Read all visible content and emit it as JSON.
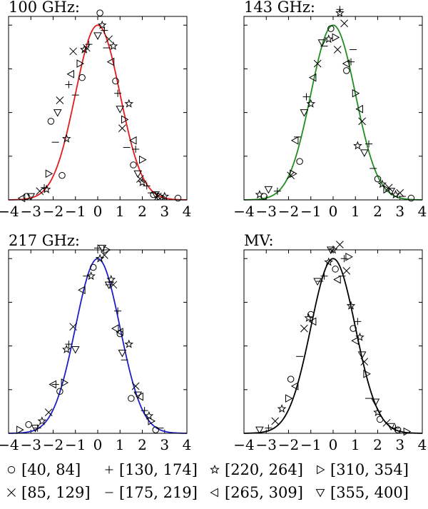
{
  "chart_data": [
    {
      "type": "scatter",
      "title": "100 GHz:",
      "curve_color": "#e41a1c",
      "xlim": [
        -4,
        4
      ],
      "ylim": [
        0,
        1.05
      ],
      "xticks": [
        -4,
        -3,
        -2,
        -1,
        0,
        1,
        2,
        3,
        4
      ],
      "xlabel": "",
      "ylabel": "",
      "series": [
        {
          "name": "[40, 84]",
          "marker": "circle",
          "x": [
            -3.2,
            -2.1,
            -1.6,
            -0.7,
            0.1,
            0.8,
            1.6,
            2.5,
            3.6
          ],
          "y": [
            0.02,
            0.45,
            0.14,
            0.7,
            1.07,
            0.68,
            0.2,
            0.03,
            0.01
          ]
        },
        {
          "name": "[85, 129]",
          "marker": "x",
          "x": [
            -2.6,
            -1.7,
            -1.1,
            -0.5,
            0.5,
            1.1,
            1.9,
            2.7
          ],
          "y": [
            0.05,
            0.57,
            0.85,
            0.87,
            0.92,
            0.41,
            0.12,
            0.02
          ]
        },
        {
          "name": "[130, 174]",
          "marker": "plus",
          "x": [
            -2.4,
            -1.3,
            -0.4,
            0.3,
            0.9,
            1.7,
            2.2
          ],
          "y": [
            0.07,
            0.66,
            0.89,
            0.97,
            0.61,
            0.29,
            0.08
          ]
        },
        {
          "name": "[175, 219]",
          "marker": "minus",
          "x": [
            -1.9,
            -1.0,
            0.4,
            1.3,
            2.4
          ],
          "y": [
            0.33,
            0.6,
            0.87,
            0.3,
            0.04
          ]
        },
        {
          "name": "[220, 264]",
          "marker": "star",
          "x": [
            -2.3,
            -1.4,
            -0.6,
            0.2,
            0.7,
            1.4,
            2.0,
            3.0
          ],
          "y": [
            0.06,
            0.35,
            0.86,
            1.0,
            0.88,
            0.55,
            0.1,
            0.02
          ]
        },
        {
          "name": "[265, 309]",
          "marker": "tri-left",
          "x": [
            -3.4,
            -1.2,
            0.6,
            1.6
          ],
          "y": [
            0.01,
            0.72,
            0.79,
            0.34
          ]
        },
        {
          "name": "[310, 354]",
          "marker": "tri-right",
          "x": [
            -2.2,
            -0.8,
            1.2,
            2.0,
            2.8
          ],
          "y": [
            0.15,
            0.78,
            0.46,
            0.23,
            0.02
          ]
        },
        {
          "name": "[355, 400]",
          "marker": "tri-down",
          "x": [
            -3.0,
            -1.8,
            0.0,
            1.0,
            1.8,
            2.6
          ],
          "y": [
            0.02,
            0.5,
            0.94,
            0.52,
            0.15,
            0.03
          ]
        }
      ]
    },
    {
      "type": "scatter",
      "title": "143 GHz:",
      "curve_color": "#1f8f1f",
      "xlim": [
        -4,
        4
      ],
      "ylim": [
        0,
        1.05
      ],
      "xticks": [
        -4,
        -3,
        -2,
        -1,
        0,
        1,
        2,
        3,
        4
      ],
      "xlabel": "",
      "ylabel": "",
      "series": [
        {
          "name": "[40, 84]",
          "marker": "circle",
          "x": [
            -3.1,
            -1.5,
            -0.1,
            0.6,
            2.0,
            3.5
          ],
          "y": [
            0.02,
            0.22,
            0.98,
            0.74,
            0.12,
            0.01
          ]
        },
        {
          "name": "[85, 129]",
          "marker": "x",
          "x": [
            -1.9,
            -0.7,
            0.2,
            0.5,
            1.3,
            2.5,
            3.0
          ],
          "y": [
            0.14,
            0.78,
            0.86,
            1.01,
            0.45,
            0.07,
            0.04
          ]
        },
        {
          "name": "[130, 174]",
          "marker": "plus",
          "x": [
            -2.5,
            -1.2,
            0.3,
            0.8,
            1.6
          ],
          "y": [
            0.05,
            0.59,
            1.09,
            0.79,
            0.32
          ]
        },
        {
          "name": "[175, 219]",
          "marker": "minus",
          "x": [
            -1.6,
            -0.4,
            0.9,
            1.8,
            3.1
          ],
          "y": [
            0.36,
            0.88,
            0.86,
            0.18,
            0.02
          ]
        },
        {
          "name": "[220, 264]",
          "marker": "star",
          "x": [
            -3.3,
            -1.0,
            -0.2,
            0.3,
            1.1,
            2.2,
            2.8
          ],
          "y": [
            0.03,
            0.55,
            0.92,
            1.07,
            0.31,
            0.09,
            0.03
          ]
        },
        {
          "name": "[265, 309]",
          "marker": "tri-left",
          "x": [
            -1.7,
            -0.9,
            0.6,
            1.2
          ],
          "y": [
            0.34,
            0.7,
            0.78,
            0.52
          ]
        },
        {
          "name": "[310, 354]",
          "marker": "tri-right",
          "x": [
            -1.8,
            0.1,
            1.0,
            2.4
          ],
          "y": [
            0.15,
            0.93,
            0.61,
            0.06
          ]
        },
        {
          "name": "[355, 400]",
          "marker": "tri-down",
          "x": [
            -2.9,
            -1.3,
            -0.5,
            1.4,
            2.6
          ],
          "y": [
            0.06,
            0.5,
            0.9,
            0.27,
            0.05
          ]
        }
      ]
    },
    {
      "type": "scatter",
      "title": "217 GHz:",
      "curve_color": "#1f1fc8",
      "xlim": [
        -4,
        4
      ],
      "ylim": [
        0,
        1.05
      ],
      "xticks": [
        -4,
        -3,
        -2,
        -1,
        0,
        1,
        2,
        3,
        4
      ],
      "xlabel": "",
      "ylabel": "",
      "series": [
        {
          "name": "[40, 84]",
          "marker": "circle",
          "x": [
            -3.1,
            -1.7,
            -0.2,
            1.0,
            1.5,
            2.6
          ],
          "y": [
            0.05,
            0.24,
            0.95,
            0.57,
            0.2,
            0.02
          ]
        },
        {
          "name": "[85, 129]",
          "marker": "x",
          "x": [
            -2.2,
            -1.1,
            0.3,
            0.7,
            1.7
          ],
          "y": [
            0.12,
            0.61,
            1.02,
            0.85,
            0.27
          ]
        },
        {
          "name": "[130, 174]",
          "marker": "plus",
          "x": [
            -2.7,
            -1.3,
            0.0,
            0.9,
            2.1
          ],
          "y": [
            0.03,
            0.51,
            1.06,
            0.7,
            0.13
          ]
        },
        {
          "name": "[175, 219]",
          "marker": "minus",
          "x": [
            -1.9,
            -0.5,
            0.5,
            1.2,
            2.8
          ],
          "y": [
            0.28,
            0.9,
            0.85,
            0.42,
            0.03
          ]
        },
        {
          "name": "[220, 264]",
          "marker": "star",
          "x": [
            -2.5,
            -1.4,
            -0.3,
            0.1,
            0.6,
            1.4,
            2.3
          ],
          "y": [
            0.07,
            0.48,
            0.9,
            1.0,
            0.88,
            0.51,
            0.1
          ]
        },
        {
          "name": "[265, 309]",
          "marker": "tri-left",
          "x": [
            -2.0,
            -0.7,
            0.8,
            1.0,
            1.9
          ],
          "y": [
            0.28,
            0.82,
            0.6,
            0.58,
            0.21
          ]
        },
        {
          "name": "[310, 354]",
          "marker": "tri-right",
          "x": [
            -3.5,
            -1.5,
            0.4,
            2.4
          ],
          "y": [
            0.02,
            0.29,
            1.05,
            0.07
          ]
        },
        {
          "name": "[355, 400]",
          "marker": "tri-down",
          "x": [
            -2.8,
            -1.0,
            0.2,
            0.5,
            1.1,
            1.8
          ],
          "y": [
            0.03,
            0.48,
            1.06,
            0.85,
            0.46,
            0.22
          ]
        }
      ]
    },
    {
      "type": "scatter",
      "title": "MV:",
      "curve_color": "#000000",
      "xlim": [
        -4,
        4
      ],
      "ylim": [
        0,
        1.05
      ],
      "xticks": [
        -4,
        -3,
        -2,
        -1,
        0,
        1,
        2,
        3,
        4
      ],
      "xlabel": "",
      "ylabel": "",
      "series": [
        {
          "name": "[40, 84]",
          "marker": "circle",
          "x": [
            -1.9,
            -1.0,
            0.1,
            0.9,
            2.1,
            2.9
          ],
          "y": [
            0.31,
            0.68,
            0.94,
            0.6,
            0.08,
            0.02
          ]
        },
        {
          "name": "[85, 129]",
          "marker": "x",
          "x": [
            -2.6,
            -1.3,
            0.3,
            0.6,
            1.4,
            2.4
          ],
          "y": [
            0.07,
            0.6,
            1.08,
            0.93,
            0.41,
            0.06
          ]
        },
        {
          "name": "[130, 174]",
          "marker": "plus",
          "x": [
            -2.9,
            -0.4,
            0.5,
            1.1,
            2.8
          ],
          "y": [
            0.03,
            0.9,
            1.0,
            0.64,
            0.03
          ]
        },
        {
          "name": "[175, 219]",
          "marker": "minus",
          "x": [
            -1.5,
            -0.6,
            0.4,
            1.6
          ],
          "y": [
            0.44,
            0.87,
            0.9,
            0.2
          ]
        },
        {
          "name": "[220, 264]",
          "marker": "star",
          "x": [
            -2.3,
            -1.1,
            -0.2,
            0.0,
            0.8,
            1.2,
            2.0
          ],
          "y": [
            0.14,
            0.66,
            0.98,
            1.05,
            0.73,
            0.55,
            0.12
          ]
        },
        {
          "name": "[265, 309]",
          "marker": "tri-left",
          "x": [
            -1.7,
            -0.9,
            0.2,
            1.0
          ],
          "y": [
            0.27,
            0.64,
            0.88,
            0.53
          ]
        },
        {
          "name": "[310, 354]",
          "marker": "tri-right",
          "x": [
            -2.0,
            0.7,
            1.5,
            3.3
          ],
          "y": [
            0.2,
            1.01,
            0.34,
            0.01
          ]
        },
        {
          "name": "[355, 400]",
          "marker": "tri-down",
          "x": [
            -3.3,
            -0.7,
            -0.1,
            1.3,
            1.9,
            2.6
          ],
          "y": [
            0.02,
            0.87,
            1.05,
            0.45,
            0.18,
            0.04
          ]
        }
      ]
    }
  ],
  "legend": [
    {
      "marker": "circle",
      "label": "[40, 84]"
    },
    {
      "marker": "plus",
      "label": "[130, 174]"
    },
    {
      "marker": "star",
      "label": "[220, 264]"
    },
    {
      "marker": "tri-right",
      "label": "[310, 354]"
    },
    {
      "marker": "x",
      "label": "[85, 129]"
    },
    {
      "marker": "minus",
      "label": "[175, 219]"
    },
    {
      "marker": "tri-left",
      "label": "[265, 309]"
    },
    {
      "marker": "tri-down",
      "label": "[355, 400]"
    }
  ]
}
